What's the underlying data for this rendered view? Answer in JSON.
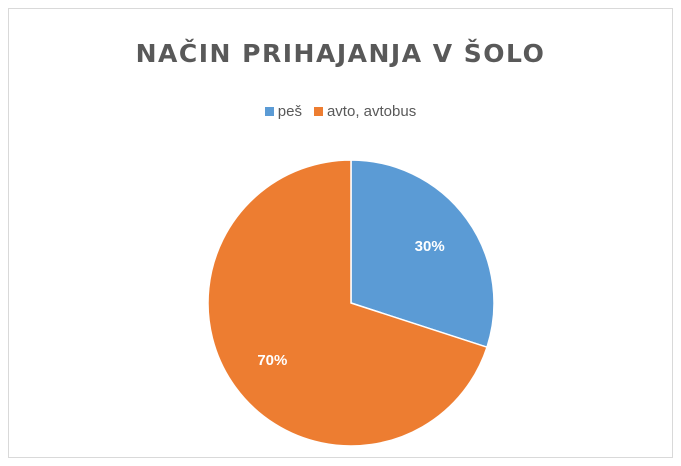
{
  "chart_data": {
    "type": "pie",
    "title": "NAČIN PRIHAJANJA V ŠOLO",
    "legend_position": "top",
    "categories": [
      "peš",
      "avto, avtobus"
    ],
    "values": [
      30,
      70
    ],
    "data_labels": [
      "30%",
      "70%"
    ],
    "colors": [
      "#5b9bd5",
      "#ed7d31"
    ]
  }
}
